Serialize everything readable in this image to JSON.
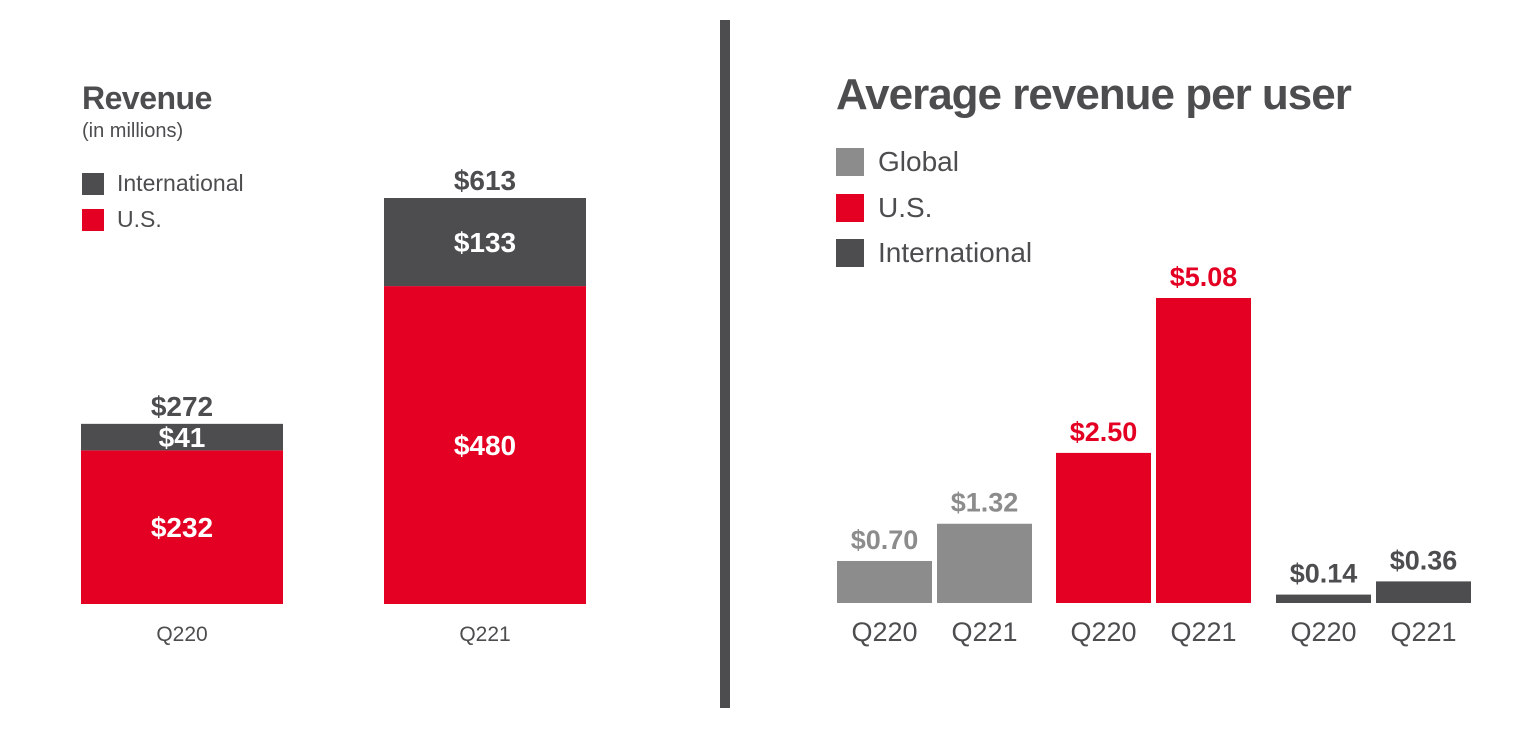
{
  "colors": {
    "us": "#e30022",
    "international": "#4d4d4f",
    "global": "#8c8c8c",
    "divider": "#4d4d4f"
  },
  "revenue_chart": {
    "title": "Revenue",
    "subtitle": "(in millions)",
    "legend": [
      {
        "label": "International",
        "color": "#4d4d4f"
      },
      {
        "label": "U.S.",
        "color": "#e30022"
      }
    ]
  },
  "arpu_chart": {
    "title": "Average revenue per user",
    "legend": [
      {
        "label": "Global",
        "color": "#8c8c8c"
      },
      {
        "label": "U.S.",
        "color": "#e30022"
      },
      {
        "label": "International",
        "color": "#4d4d4f"
      }
    ]
  },
  "chart_data": [
    {
      "type": "bar",
      "stacked": true,
      "title": "Revenue",
      "subtitle": "(in millions)",
      "categories": [
        "Q220",
        "Q221"
      ],
      "series": [
        {
          "name": "U.S.",
          "values": [
            232,
            480
          ],
          "labels": [
            "$232",
            "$480"
          ],
          "color": "#e30022"
        },
        {
          "name": "International",
          "values": [
            41,
            133
          ],
          "labels": [
            "$41",
            "$133"
          ],
          "color": "#4d4d4f"
        }
      ],
      "totals": [
        272,
        613
      ],
      "total_labels": [
        "$272",
        "$613"
      ],
      "ylim": [
        0,
        613
      ],
      "grid": false,
      "legend_position": "top-left"
    },
    {
      "type": "bar",
      "stacked": false,
      "title": "Average revenue per user",
      "groups": [
        {
          "name": "Global",
          "color": "#8c8c8c",
          "categories": [
            "Q220",
            "Q221"
          ],
          "values": [
            0.7,
            1.32
          ],
          "labels": [
            "$0.70",
            "$1.32"
          ],
          "label_color": "#8c8c8c"
        },
        {
          "name": "U.S.",
          "color": "#e30022",
          "categories": [
            "Q220",
            "Q221"
          ],
          "values": [
            2.5,
            5.08
          ],
          "labels": [
            "$2.50",
            "$5.08"
          ],
          "label_color": "#e30022"
        },
        {
          "name": "International",
          "color": "#4d4d4f",
          "categories": [
            "Q220",
            "Q221"
          ],
          "values": [
            0.14,
            0.36
          ],
          "labels": [
            "$0.14",
            "$0.36"
          ],
          "label_color": "#4d4d4f"
        }
      ],
      "ylim": [
        0,
        5.08
      ],
      "grid": false,
      "legend_position": "top-left"
    }
  ]
}
